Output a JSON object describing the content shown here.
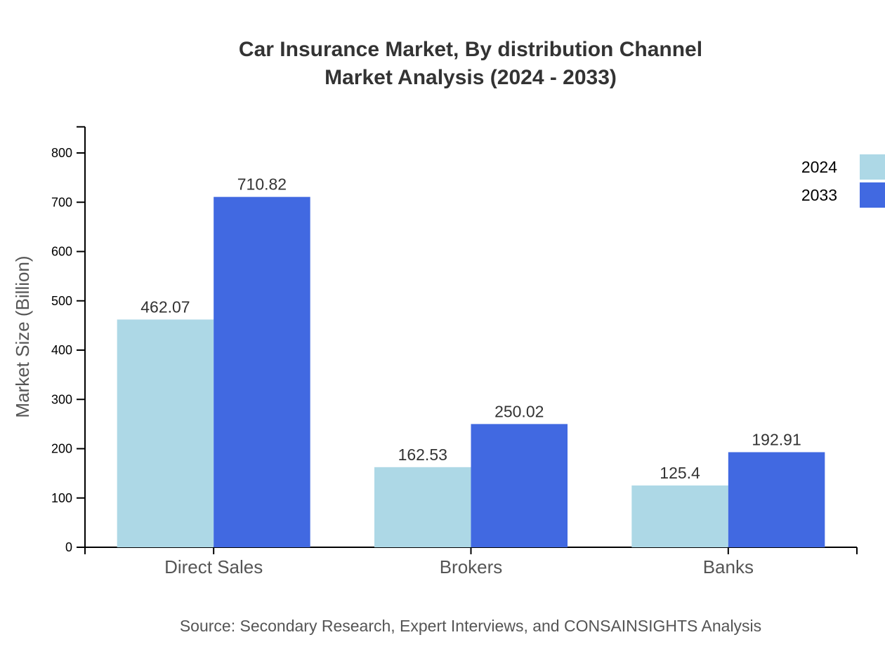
{
  "chart_data": {
    "type": "bar",
    "title": "Car Insurance Market, By distribution Channel",
    "subtitle": "Market Analysis (2024 - 2033)",
    "xlabel": "",
    "ylabel": "Market Size (Billion)",
    "ylim": [
      0,
      853
    ],
    "yticks": [
      0,
      100,
      200,
      300,
      400,
      500,
      600,
      700,
      800
    ],
    "categories": [
      "Direct Sales",
      "Brokers",
      "Banks"
    ],
    "series": [
      {
        "name": "2024",
        "color": "#add8e6",
        "values": [
          462.07,
          162.53,
          125.4
        ]
      },
      {
        "name": "2033",
        "color": "#4169e1",
        "values": [
          710.82,
          250.02,
          192.91
        ]
      }
    ],
    "legend_position": "top-right",
    "grid": false,
    "source": "Source: Secondary Research, Expert Interviews, and CONSAINSIGHTS Analysis"
  }
}
